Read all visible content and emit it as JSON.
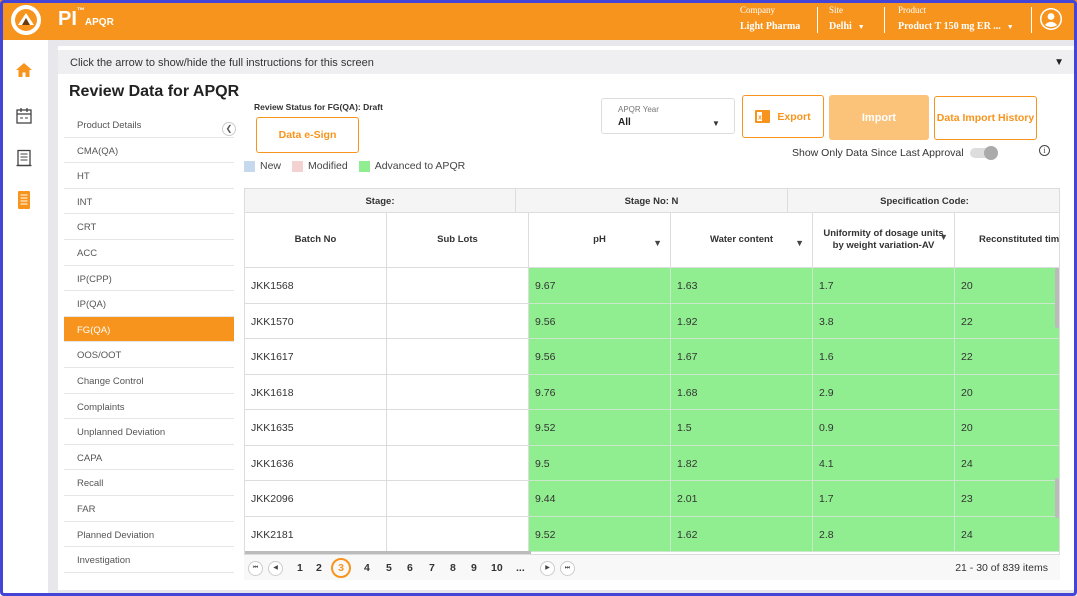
{
  "app": {
    "brand": "PI",
    "brand_tm": "™",
    "brand_sub": "APQR"
  },
  "topbar": {
    "company_caption": "Company",
    "company_value": "Light Pharma",
    "site_caption": "Site",
    "site_value": "Delhi",
    "product_caption": "Product",
    "product_value": "Product T 150 mg ER ..."
  },
  "left_rail": {
    "icons": [
      "home-icon",
      "calendar-icon",
      "report-icon",
      "document-icon"
    ]
  },
  "instructions": {
    "text": "Click the arrow to show/hide the full instructions for this screen"
  },
  "page": {
    "title": "Review Data for APQR"
  },
  "sidebar": {
    "items": [
      {
        "label": "Product Details"
      },
      {
        "label": "CMA(QA)"
      },
      {
        "label": "HT"
      },
      {
        "label": "INT"
      },
      {
        "label": "CRT"
      },
      {
        "label": "ACC"
      },
      {
        "label": "IP(CPP)"
      },
      {
        "label": "IP(QA)"
      },
      {
        "label": "FG(QA)",
        "active": true
      },
      {
        "label": "OOS/OOT"
      },
      {
        "label": "Change Control"
      },
      {
        "label": "Complaints"
      },
      {
        "label": "Unplanned Deviation"
      },
      {
        "label": "CAPA"
      },
      {
        "label": "Recall"
      },
      {
        "label": "FAR"
      },
      {
        "label": "Planned Deviation"
      },
      {
        "label": "Investigation"
      }
    ]
  },
  "review": {
    "status_text": "Review Status for FG(QA): Draft",
    "esign_label": "Data e-Sign"
  },
  "year_select": {
    "caption": "APQR Year",
    "value": "All"
  },
  "toolbar": {
    "export_label": "Export",
    "import_label": "Import",
    "history_label": "Data Import History"
  },
  "legend": {
    "items": [
      {
        "label": "New",
        "color": "#c6d9ec"
      },
      {
        "label": "Modified",
        "color": "#f4d2d2"
      },
      {
        "label": "Advanced to APQR",
        "color": "#90ee90"
      }
    ]
  },
  "since_toggle": {
    "label": "Show Only Data Since Last Approval",
    "on": false
  },
  "grid": {
    "group_headers": {
      "stage": "Stage:",
      "stage_no": "Stage No: N",
      "spec_code": "Specification Code:"
    },
    "columns": [
      {
        "label": "Batch No"
      },
      {
        "label": "Sub Lots"
      },
      {
        "label": "pH"
      },
      {
        "label": "Water content"
      },
      {
        "label_line1": "Uniformity of dosage units",
        "label_line2": "by weight variation-AV"
      },
      {
        "label": "Reconstituted tim"
      }
    ],
    "rows": [
      {
        "batch": "JKK1568",
        "sublots": "",
        "ph": "9.67",
        "water": "1.63",
        "uniformity": "1.7",
        "recon": "20"
      },
      {
        "batch": "JKK1570",
        "sublots": "",
        "ph": "9.56",
        "water": "1.92",
        "uniformity": "3.8",
        "recon": "22"
      },
      {
        "batch": "JKK1617",
        "sublots": "",
        "ph": "9.56",
        "water": "1.67",
        "uniformity": "1.6",
        "recon": "22"
      },
      {
        "batch": "JKK1618",
        "sublots": "",
        "ph": "9.76",
        "water": "1.68",
        "uniformity": "2.9",
        "recon": "20"
      },
      {
        "batch": "JKK1635",
        "sublots": "",
        "ph": "9.52",
        "water": "1.5",
        "uniformity": "0.9",
        "recon": "20"
      },
      {
        "batch": "JKK1636",
        "sublots": "",
        "ph": "9.5",
        "water": "1.82",
        "uniformity": "4.1",
        "recon": "24"
      },
      {
        "batch": "JKK2096",
        "sublots": "",
        "ph": "9.44",
        "water": "2.01",
        "uniformity": "1.7",
        "recon": "23"
      },
      {
        "batch": "JKK2181",
        "sublots": "",
        "ph": "9.52",
        "water": "1.62",
        "uniformity": "2.8",
        "recon": "24"
      }
    ]
  },
  "pager": {
    "pages": [
      "1",
      "2",
      "3",
      "4",
      "5",
      "6",
      "7",
      "8",
      "9",
      "10",
      "..."
    ],
    "current": "3",
    "info": "21 - 30 of 839 items"
  }
}
